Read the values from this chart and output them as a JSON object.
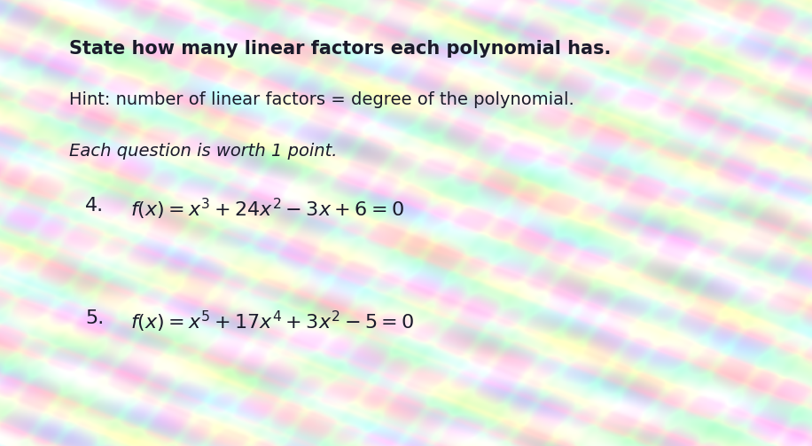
{
  "title_line1": "State how many linear factors each polynomial has.",
  "title_line2": "Hint: number of linear factors = degree of the polynomial.",
  "title_line3": "Each question is worth 1 point.",
  "q4_label": "4.",
  "q4_math": "$f(x) = x^{3} + 24x^{2} - 3x  +  6 = 0$",
  "q5_label": "5.",
  "q5_math": "$f(x) = x^{5} + 17x^{4} + 3x^{2}  - 5 = 0$",
  "text_color": "#1a1a2a",
  "fig_width": 9.16,
  "fig_height": 5.03,
  "dpi": 100
}
